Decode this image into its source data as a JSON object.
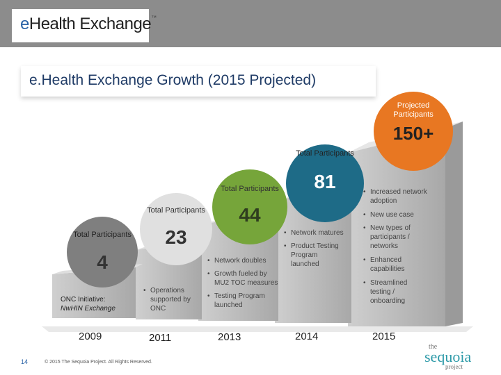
{
  "logo": {
    "prefix": "e",
    "name": "Health Exchange",
    "tm": "™"
  },
  "title": "e.Health Exchange Growth (2015 Projected)",
  "stages": [
    {
      "label": "Total Participants",
      "value": "4",
      "year": "2009",
      "note_line1": "ONC Initiative:",
      "note_line2": "NwHIN Exchange"
    },
    {
      "label": "Total Participants",
      "value": "23",
      "year": "2011",
      "bullets": [
        "Operations supported by ONC"
      ]
    },
    {
      "label": "Total Participants",
      "value": "44",
      "year": "2013",
      "bullets": [
        "Network doubles",
        "Growth fueled by MU2 TOC measures",
        "Testing Program launched"
      ]
    },
    {
      "label": "Total Participants",
      "value": "81",
      "year": "2014",
      "bullets": [
        "Network matures",
        "Product Testing Program launched"
      ]
    },
    {
      "label": "Projected Participants",
      "value": "150+",
      "year": "2015",
      "bullets": [
        "Increased network adoption",
        "New use case",
        "New types of participants / networks",
        "Enhanced capabilities",
        "Streamlined testing / onboarding"
      ]
    }
  ],
  "footer": {
    "page": "14",
    "copyright": "© 2015 The Sequoia Project. All Rights Reserved."
  },
  "brand": {
    "the": "the",
    "name": "sequoia",
    "suffix": "project"
  },
  "colors": {
    "header": "#8c8c8c",
    "circle_4": "#7f7f7f",
    "circle_23": "#e0e0e0",
    "circle_44": "#76a53a",
    "circle_81": "#1e6b87",
    "circle_150": "#e87722",
    "title": "#1f3b66"
  }
}
